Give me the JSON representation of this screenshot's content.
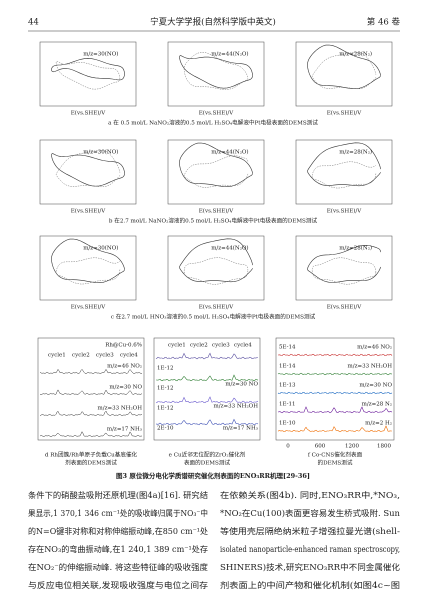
{
  "header": {
    "page": "44",
    "journal": "宁夏大学学报(自然科学版中英文)",
    "volume": "第 46 卷"
  },
  "figure": {
    "rows": [
      {
        "panels": [
          {
            "label": "m/z=30(NO)",
            "x_axis": "E(vs.SHE)/V"
          },
          {
            "label": "m/z=44(N₂O)",
            "x_axis": "E(vs.SHE)/V"
          },
          {
            "label": "m/z=28(N₂)",
            "x_axis": "E(vs.SHE)/V"
          }
        ],
        "caption": "a  在 0.5 mol/L NaNO₂溶液的0.5 mol/L H₂SO₄电解液中Pt电极表面的DEMS测试"
      },
      {
        "panels": [
          {
            "label": "m/z=30(NO)",
            "x_axis": "E(vs.SHE)/V"
          },
          {
            "label": "m/z=44(N₂O)",
            "x_axis": "E(vs.SHE)/V"
          },
          {
            "label": "m/z=28(N₂)",
            "x_axis": "E(vs.SHE)/V"
          }
        ],
        "caption": "b  在2.7 mol/L NaNO₂溶液的0.5 mol/L H₂SO₄电解液中Pt电极表面的DEMS测试"
      },
      {
        "panels": [
          {
            "label": "m/z=30(NO)",
            "x_axis": "E(vs.SHE)/V"
          },
          {
            "label": "m/z=44(N₂O)",
            "x_axis": "E(vs.SHE)/V"
          },
          {
            "label": "m/z=28(N₂)",
            "x_axis": "E(vs.SHE)/V"
          }
        ],
        "caption": "c  在2.7 mol/L HNO₃溶液的0.5 mol/L H₂SO₄电解液中Pt电极表面的DEMS测试"
      }
    ],
    "panel_d": {
      "sample": "Rh@Cu-0.6%",
      "cycles": [
        "cycle1",
        "cycle2",
        "cycle3",
        "cycle4"
      ],
      "traces": [
        "m/z=46 NO₂",
        "m/z=30 NO",
        "m/z=33 NH₂OH",
        "m/z=17 NH₃"
      ],
      "caption": [
        "d   Rh团簇/Rh单原子负载Cu基底催化",
        "剂表面的DEMS测试"
      ]
    },
    "panel_e": {
      "cycles": [
        "cycle1",
        "cycle2",
        "cycle3",
        "cycle4"
      ],
      "scales": [
        "1E-12",
        "1E-12",
        "1E-12",
        "2E-10"
      ],
      "traces": [
        "m/z=30 NO",
        "m/z=33 NH₂OH",
        "m/z=17 NH₃"
      ],
      "caption": [
        "e   Cu近邻无位配的ZrO₂催化剂",
        "表面的DEMS测试"
      ]
    },
    "panel_f": {
      "scales": [
        "5E-14",
        "1E-14",
        "1E-13",
        "1E-11",
        "1E-10"
      ],
      "traces": [
        "m/z=46 NO₂",
        "m/z=33 NH₂OH",
        "m/z=30 NO",
        "m/z=28 N₂",
        "m/z=2 H₂"
      ],
      "x_ticks": [
        "0",
        "600",
        "1200",
        "1800"
      ],
      "caption": [
        "f   Co-CNS催化剂表面",
        "的DEMS测试"
      ]
    },
    "title": "图3  原位微分电化学质谱研究催化剂表面的ENO₃RR机理[29-36]"
  },
  "body": {
    "left": [
      "条件下的硝酸盐吸附还原机理(图4a)[16]. 研究结",
      "果显示,1 370,1 346 cm⁻¹处的吸收峰归属于NO₃⁻中",
      "的N=O键非对称和对称伸缩振动峰,在850 cm⁻¹处",
      "存在NO₃的弯曲振动峰,在1 240,1 389 cm⁻¹处存",
      "在NO₂⁻的伸缩振动峰. 将这些特征峰的吸收强度",
      "与反应电位相关联,发现吸收强度与电位之间存"
    ],
    "right": [
      "在依赖关系(图4b). 同时,ENO₃RR中,*NO₃,",
      "*NO₂在Cu(100)表面更容易发生桥式吸附. Sun",
      "等使用壳层隔绝纳米粒子增强拉曼光谱(shell-",
      "isolated nanoparticle-enhanced raman spectroscopy,",
      "SHINERS)技术,研究ENO₃RR中不同金属催化",
      "剂表面上的中间产物和催化机制(如图4c~图"
    ]
  }
}
